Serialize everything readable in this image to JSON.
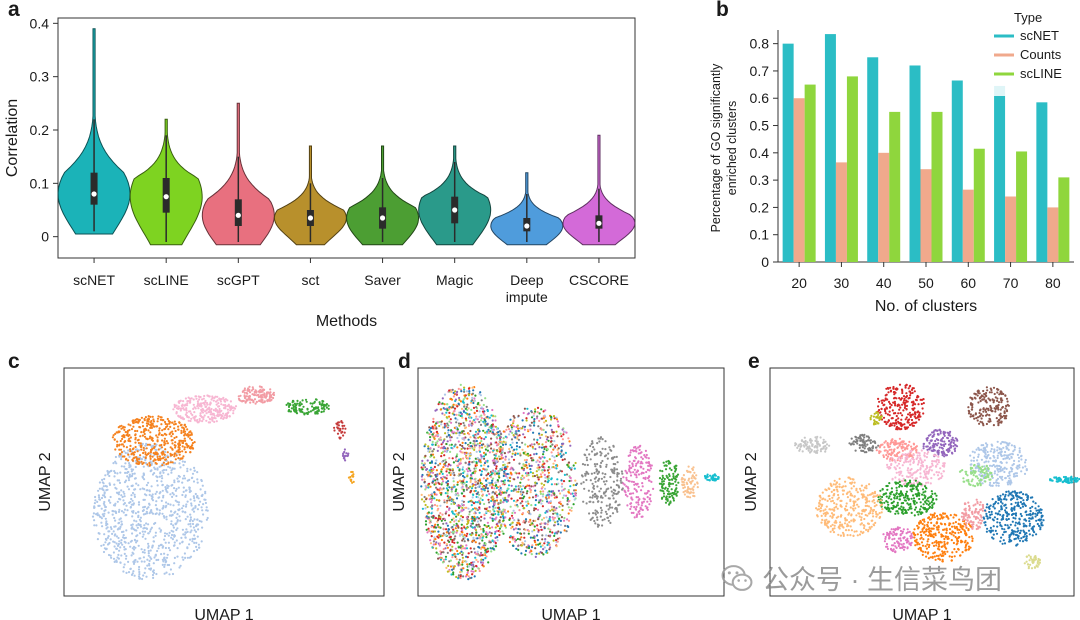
{
  "panels": {
    "a": "a",
    "b": "b",
    "c": "c",
    "d": "d",
    "e": "e"
  },
  "chart_data": [
    {
      "id": "a",
      "type": "violin",
      "xlabel": "Methods",
      "ylabel": "Correlation",
      "ylim": [
        -0.04,
        0.41
      ],
      "yticks": [
        0,
        0.1,
        0.2,
        0.3,
        0.4
      ],
      "ytick_labels": [
        "0",
        "0.1",
        "0.2",
        "0.3",
        "0.4"
      ],
      "categories": [
        "scNET",
        "scLINE",
        "scGPT",
        "sct",
        "Saver",
        "Magic",
        "Deep impute",
        "CSCORE"
      ],
      "category_lines": [
        [
          "scNET"
        ],
        [
          "scLINE"
        ],
        [
          "scGPT"
        ],
        [
          "sct"
        ],
        [
          "Saver"
        ],
        [
          "Magic"
        ],
        [
          "Deep",
          "impute"
        ],
        [
          "CSCORE"
        ]
      ],
      "colors": [
        "#1bb3b8",
        "#7ed321",
        "#e8707f",
        "#b8902c",
        "#4c9e33",
        "#2a9a8a",
        "#4f9cdc",
        "#d36ad8"
      ],
      "medians": [
        0.08,
        0.075,
        0.04,
        0.035,
        0.035,
        0.05,
        0.02,
        0.025
      ],
      "q1": [
        0.06,
        0.045,
        0.02,
        0.02,
        0.015,
        0.025,
        0.01,
        0.015
      ],
      "q3": [
        0.12,
        0.11,
        0.07,
        0.05,
        0.055,
        0.075,
        0.035,
        0.04
      ],
      "whisker_low": [
        0.01,
        -0.01,
        -0.01,
        -0.01,
        -0.01,
        -0.01,
        -0.01,
        -0.01
      ],
      "whisker_high": [
        0.22,
        0.19,
        0.15,
        0.1,
        0.11,
        0.14,
        0.08,
        0.09
      ],
      "max": [
        0.39,
        0.22,
        0.25,
        0.17,
        0.17,
        0.17,
        0.12,
        0.19
      ],
      "min": [
        0.005,
        -0.015,
        -0.015,
        -0.015,
        -0.015,
        -0.015,
        -0.015,
        -0.015
      ]
    },
    {
      "id": "b",
      "type": "bar",
      "xlabel": "No. of clusters",
      "ylabel_lines": [
        "Percentage of GO significantly",
        "enriched clusters"
      ],
      "categories": [
        "20",
        "30",
        "40",
        "50",
        "60",
        "70",
        "80"
      ],
      "ylim": [
        0,
        0.85
      ],
      "yticks": [
        0,
        0.1,
        0.2,
        0.3,
        0.4,
        0.5,
        0.6,
        0.7,
        0.8
      ],
      "ytick_labels": [
        "0",
        "0.1",
        "0.2",
        "0.3",
        "0.4",
        "0.5",
        "0.6",
        "0.7",
        "0.8"
      ],
      "legend_title": "Type",
      "legend_position": "top-right",
      "series": [
        {
          "name": "scNET",
          "color": "#2bbdc5",
          "values": [
            0.8,
            0.835,
            0.75,
            0.72,
            0.665,
            0.645,
            0.585
          ]
        },
        {
          "name": "Counts",
          "color": "#f0a98c",
          "values": [
            0.6,
            0.365,
            0.4,
            0.34,
            0.265,
            0.24,
            0.2
          ]
        },
        {
          "name": "scLINE",
          "color": "#8fd63d",
          "values": [
            0.65,
            0.68,
            0.55,
            0.55,
            0.415,
            0.405,
            0.31
          ]
        }
      ]
    },
    {
      "id": "c",
      "type": "scatter",
      "xlabel": "UMAP 1",
      "ylabel": "UMAP 2",
      "clusters": [
        {
          "color": "#aec7e8",
          "shape": "blob",
          "cx": 0.27,
          "cy": 0.63,
          "rx": 0.18,
          "ry": 0.3,
          "n": 900
        },
        {
          "color": "#f5821f",
          "shape": "blob",
          "cx": 0.28,
          "cy": 0.32,
          "rx": 0.13,
          "ry": 0.11,
          "n": 420
        },
        {
          "color": "#f7b6d2",
          "shape": "blob",
          "cx": 0.44,
          "cy": 0.18,
          "rx": 0.1,
          "ry": 0.06,
          "n": 260
        },
        {
          "color": "#f29ca4",
          "shape": "blob",
          "cx": 0.6,
          "cy": 0.12,
          "rx": 0.06,
          "ry": 0.04,
          "n": 130
        },
        {
          "color": "#39a535",
          "shape": "blob",
          "cx": 0.76,
          "cy": 0.17,
          "rx": 0.07,
          "ry": 0.035,
          "n": 110
        },
        {
          "color": "#c53a3a",
          "shape": "blob",
          "cx": 0.86,
          "cy": 0.27,
          "rx": 0.02,
          "ry": 0.04,
          "n": 30
        },
        {
          "color": "#9467bd",
          "shape": "blob",
          "cx": 0.88,
          "cy": 0.38,
          "rx": 0.01,
          "ry": 0.03,
          "n": 15
        },
        {
          "color": "#f5a623",
          "shape": "blob",
          "cx": 0.9,
          "cy": 0.48,
          "rx": 0.01,
          "ry": 0.03,
          "n": 15
        }
      ]
    },
    {
      "id": "d",
      "type": "scatter",
      "xlabel": "UMAP 1",
      "ylabel": "UMAP 2",
      "clusters": [
        {
          "color": "mixed",
          "shape": "blob",
          "cx": 0.15,
          "cy": 0.5,
          "rx": 0.14,
          "ry": 0.43,
          "n": 1600
        },
        {
          "color": "mixed",
          "shape": "blob",
          "cx": 0.38,
          "cy": 0.5,
          "rx": 0.14,
          "ry": 0.33,
          "n": 900
        },
        {
          "color": "#8c8c8c",
          "shape": "blob",
          "cx": 0.6,
          "cy": 0.5,
          "rx": 0.07,
          "ry": 0.2,
          "n": 220
        },
        {
          "color": "#e377c2",
          "shape": "blob",
          "cx": 0.72,
          "cy": 0.5,
          "rx": 0.05,
          "ry": 0.16,
          "n": 180
        },
        {
          "color": "#39a535",
          "shape": "blob",
          "cx": 0.82,
          "cy": 0.5,
          "rx": 0.035,
          "ry": 0.1,
          "n": 110
        },
        {
          "color": "#f9c18f",
          "shape": "blob",
          "cx": 0.89,
          "cy": 0.5,
          "rx": 0.03,
          "ry": 0.07,
          "n": 70
        },
        {
          "color": "#17becf",
          "shape": "blob",
          "cx": 0.96,
          "cy": 0.48,
          "rx": 0.025,
          "ry": 0.015,
          "n": 35
        }
      ]
    },
    {
      "id": "e",
      "type": "scatter",
      "xlabel": "UMAP 1",
      "ylabel": "UMAP 2",
      "clusters": [
        {
          "color": "#d62728",
          "shape": "blob",
          "cx": 0.43,
          "cy": 0.17,
          "rx": 0.08,
          "ry": 0.1,
          "n": 230
        },
        {
          "color": "#8c564b",
          "shape": "blob",
          "cx": 0.72,
          "cy": 0.17,
          "rx": 0.07,
          "ry": 0.09,
          "n": 180
        },
        {
          "color": "#9467bd",
          "shape": "blob",
          "cx": 0.56,
          "cy": 0.33,
          "rx": 0.06,
          "ry": 0.06,
          "n": 140
        },
        {
          "color": "#bcbd22",
          "shape": "blob",
          "cx": 0.35,
          "cy": 0.22,
          "rx": 0.02,
          "ry": 0.03,
          "n": 30
        },
        {
          "color": "#7f7f7f",
          "shape": "blob",
          "cx": 0.31,
          "cy": 0.33,
          "rx": 0.05,
          "ry": 0.04,
          "n": 80
        },
        {
          "color": "#c7c7c7",
          "shape": "blob",
          "cx": 0.14,
          "cy": 0.34,
          "rx": 0.06,
          "ry": 0.04,
          "n": 90
        },
        {
          "color": "#ff9896",
          "shape": "blob",
          "cx": 0.42,
          "cy": 0.36,
          "rx": 0.07,
          "ry": 0.05,
          "n": 130
        },
        {
          "color": "#aec7e8",
          "shape": "blob",
          "cx": 0.75,
          "cy": 0.42,
          "rx": 0.1,
          "ry": 0.1,
          "n": 260
        },
        {
          "color": "#f7b6d2",
          "shape": "blob",
          "cx": 0.48,
          "cy": 0.44,
          "rx": 0.1,
          "ry": 0.08,
          "n": 200
        },
        {
          "color": "#2ca02c",
          "shape": "blob",
          "cx": 0.45,
          "cy": 0.57,
          "rx": 0.1,
          "ry": 0.08,
          "n": 240
        },
        {
          "color": "#ffbb78",
          "shape": "blob",
          "cx": 0.26,
          "cy": 0.61,
          "rx": 0.11,
          "ry": 0.13,
          "n": 320
        },
        {
          "color": "#ff7f0e",
          "shape": "blob",
          "cx": 0.57,
          "cy": 0.74,
          "rx": 0.1,
          "ry": 0.11,
          "n": 300
        },
        {
          "color": "#e377c2",
          "shape": "blob",
          "cx": 0.42,
          "cy": 0.75,
          "rx": 0.05,
          "ry": 0.06,
          "n": 100
        },
        {
          "color": "#f29ca4",
          "shape": "blob",
          "cx": 0.67,
          "cy": 0.64,
          "rx": 0.04,
          "ry": 0.07,
          "n": 90
        },
        {
          "color": "#1f77b4",
          "shape": "blob",
          "cx": 0.8,
          "cy": 0.66,
          "rx": 0.1,
          "ry": 0.12,
          "n": 320
        },
        {
          "color": "#17becf",
          "shape": "blob",
          "cx": 0.97,
          "cy": 0.49,
          "rx": 0.05,
          "ry": 0.015,
          "n": 70
        },
        {
          "color": "#dbdb8d",
          "shape": "blob",
          "cx": 0.86,
          "cy": 0.85,
          "rx": 0.03,
          "ry": 0.03,
          "n": 40
        },
        {
          "color": "#98df8a",
          "shape": "blob",
          "cx": 0.68,
          "cy": 0.47,
          "rx": 0.06,
          "ry": 0.05,
          "n": 80
        }
      ]
    }
  ],
  "watermark": {
    "text": "公众号 · 生信菜鸟团",
    "icon": "wechat-icon",
    "color": "#8a8a8a"
  }
}
